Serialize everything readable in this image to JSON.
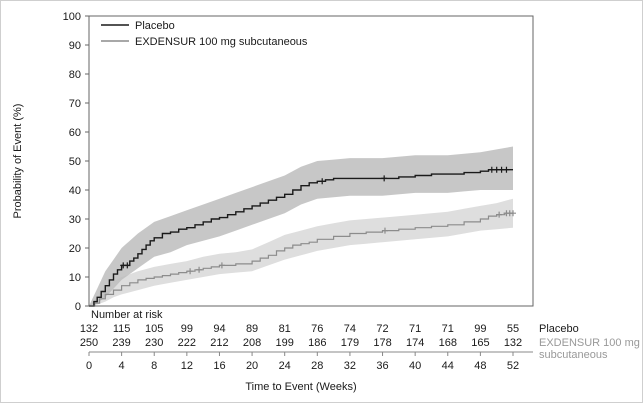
{
  "chart_data": {
    "type": "line",
    "subtype": "kaplan-meier-step-with-confidence-bands",
    "title": "",
    "xlabel": "Time to Event (Weeks)",
    "ylabel": "Probability of Event (%)",
    "xlim": [
      0,
      52
    ],
    "ylim": [
      0,
      100
    ],
    "x_ticks": [
      0,
      4,
      8,
      12,
      16,
      20,
      24,
      28,
      32,
      36,
      40,
      44,
      48,
      52
    ],
    "y_ticks": [
      0,
      10,
      20,
      30,
      40,
      50,
      60,
      70,
      80,
      90,
      100
    ],
    "legend_position": "top-left",
    "grid": false,
    "series": [
      {
        "name": "Placebo",
        "color": "#1a1a1a",
        "band_color": "#bdbdbd",
        "band_opacity": 0.85,
        "steps": [
          [
            0,
            0
          ],
          [
            0.6,
            1.5
          ],
          [
            1,
            3
          ],
          [
            1.5,
            5
          ],
          [
            2,
            7
          ],
          [
            2.5,
            9
          ],
          [
            3,
            11
          ],
          [
            3.5,
            12.5
          ],
          [
            4,
            14
          ],
          [
            5,
            15.5
          ],
          [
            5.5,
            16.5
          ],
          [
            6,
            18
          ],
          [
            6.5,
            19.5
          ],
          [
            7,
            21
          ],
          [
            7.5,
            22.5
          ],
          [
            8,
            23.5
          ],
          [
            9,
            25
          ],
          [
            10,
            25.5
          ],
          [
            11,
            26.5
          ],
          [
            12,
            27
          ],
          [
            13,
            28
          ],
          [
            14,
            29
          ],
          [
            15,
            30
          ],
          [
            16,
            30.5
          ],
          [
            17,
            31.5
          ],
          [
            18,
            32.5
          ],
          [
            19,
            33.5
          ],
          [
            20,
            34.5
          ],
          [
            21,
            35.5
          ],
          [
            22,
            36.5
          ],
          [
            23,
            37.5
          ],
          [
            24,
            38.5
          ],
          [
            25,
            40
          ],
          [
            26,
            41.5
          ],
          [
            27,
            42.5
          ],
          [
            28,
            43
          ],
          [
            29,
            43.5
          ],
          [
            30,
            44
          ],
          [
            36,
            44
          ],
          [
            38,
            44.5
          ],
          [
            40,
            45
          ],
          [
            42,
            45.5
          ],
          [
            44,
            45.5
          ],
          [
            46,
            46
          ],
          [
            48,
            46.5
          ],
          [
            49,
            47
          ],
          [
            52,
            47
          ]
        ],
        "band": [
          [
            0,
            0,
            0
          ],
          [
            1,
            1,
            6
          ],
          [
            2,
            3,
            12
          ],
          [
            3,
            6,
            16
          ],
          [
            4,
            9,
            20
          ],
          [
            6,
            13,
            25
          ],
          [
            8,
            17,
            29
          ],
          [
            10,
            18.5,
            31
          ],
          [
            12,
            21,
            33
          ],
          [
            14,
            22.5,
            35
          ],
          [
            16,
            24,
            37
          ],
          [
            18,
            26,
            39
          ],
          [
            20,
            28,
            41
          ],
          [
            22,
            30,
            43
          ],
          [
            24,
            32,
            45
          ],
          [
            26,
            35,
            48
          ],
          [
            28,
            37,
            50
          ],
          [
            30,
            37.5,
            50.5
          ],
          [
            32,
            38,
            51
          ],
          [
            36,
            38,
            51
          ],
          [
            40,
            39,
            52
          ],
          [
            44,
            39,
            52
          ],
          [
            46,
            39.5,
            52.5
          ],
          [
            48,
            40,
            53
          ],
          [
            50,
            40,
            54
          ],
          [
            52,
            40,
            55
          ]
        ],
        "censor_marks": [
          [
            4.2,
            14
          ],
          [
            4.7,
            14
          ],
          [
            28.6,
            43
          ],
          [
            36.2,
            44
          ],
          [
            49.4,
            47
          ],
          [
            50,
            47
          ],
          [
            50.6,
            47
          ],
          [
            51.2,
            47
          ]
        ]
      },
      {
        "name": "EXDENSUR 100 mg subcutaneous",
        "color": "#8c8c8c",
        "band_color": "#dedede",
        "band_opacity": 1,
        "steps": [
          [
            0,
            0
          ],
          [
            0.7,
            1
          ],
          [
            1.3,
            2.5
          ],
          [
            2,
            4
          ],
          [
            3,
            5.5
          ],
          [
            4,
            7
          ],
          [
            5,
            8
          ],
          [
            6,
            9
          ],
          [
            7,
            9.5
          ],
          [
            8,
            10
          ],
          [
            9,
            10.5
          ],
          [
            10,
            11
          ],
          [
            11,
            11.5
          ],
          [
            12,
            12
          ],
          [
            13,
            12.5
          ],
          [
            14,
            13
          ],
          [
            15,
            13.5
          ],
          [
            16,
            14
          ],
          [
            18,
            14.5
          ],
          [
            20,
            15.5
          ],
          [
            21,
            16.5
          ],
          [
            22,
            17.5
          ],
          [
            23,
            19
          ],
          [
            24,
            20
          ],
          [
            25,
            21
          ],
          [
            26,
            21.5
          ],
          [
            27,
            22
          ],
          [
            28,
            23
          ],
          [
            30,
            24
          ],
          [
            32,
            25
          ],
          [
            34,
            25.5
          ],
          [
            36,
            26
          ],
          [
            38,
            26.5
          ],
          [
            40,
            27
          ],
          [
            42,
            27.5
          ],
          [
            44,
            28
          ],
          [
            46,
            29
          ],
          [
            48,
            30
          ],
          [
            49,
            31
          ],
          [
            50,
            31.5
          ],
          [
            51,
            32
          ],
          [
            52,
            32
          ]
        ],
        "band": [
          [
            0,
            0,
            0
          ],
          [
            1,
            0.5,
            3
          ],
          [
            2,
            1.5,
            7
          ],
          [
            3,
            3,
            8.5
          ],
          [
            4,
            4,
            10
          ],
          [
            6,
            5.5,
            12
          ],
          [
            8,
            7,
            13.5
          ],
          [
            10,
            8,
            14.5
          ],
          [
            12,
            9,
            15.5
          ],
          [
            14,
            10,
            17
          ],
          [
            16,
            11,
            18
          ],
          [
            18,
            11.5,
            18.5
          ],
          [
            20,
            12,
            19.5
          ],
          [
            22,
            14,
            22
          ],
          [
            24,
            16,
            24.5
          ],
          [
            26,
            17.5,
            26
          ],
          [
            28,
            19,
            27.5
          ],
          [
            30,
            20,
            28.5
          ],
          [
            32,
            21,
            29.5
          ],
          [
            34,
            21.5,
            30
          ],
          [
            36,
            22,
            30.5
          ],
          [
            40,
            23,
            31.5
          ],
          [
            44,
            24,
            32.5
          ],
          [
            46,
            25,
            33.5
          ],
          [
            48,
            26,
            34.5
          ],
          [
            50,
            26.5,
            35.5
          ],
          [
            52,
            27,
            37
          ]
        ],
        "censor_marks": [
          [
            12.4,
            12
          ],
          [
            13.5,
            12.5
          ],
          [
            16.3,
            14
          ],
          [
            36.3,
            26
          ],
          [
            50.3,
            31.5
          ],
          [
            51.2,
            32
          ],
          [
            51.6,
            32
          ],
          [
            52,
            32
          ]
        ]
      }
    ],
    "risk_table": {
      "title": "Number at risk",
      "timepoints": [
        0,
        4,
        8,
        12,
        16,
        20,
        24,
        28,
        32,
        36,
        40,
        44,
        48,
        52
      ],
      "rows": [
        {
          "label": "Placebo",
          "label_lines": [
            "Placebo"
          ],
          "color": "#1a1a1a",
          "counts": [
            132,
            115,
            105,
            99,
            94,
            89,
            81,
            76,
            74,
            72,
            71,
            71,
            99,
            55
          ]
        },
        {
          "label": "EXDENSUR 100 mg subcutaneous",
          "label_lines": [
            "EXDENSUR 100 mg",
            "subcutaneous"
          ],
          "color": "#999999",
          "counts": [
            250,
            239,
            230,
            222,
            212,
            208,
            199,
            186,
            179,
            178,
            174,
            168,
            165,
            132
          ]
        }
      ]
    }
  }
}
